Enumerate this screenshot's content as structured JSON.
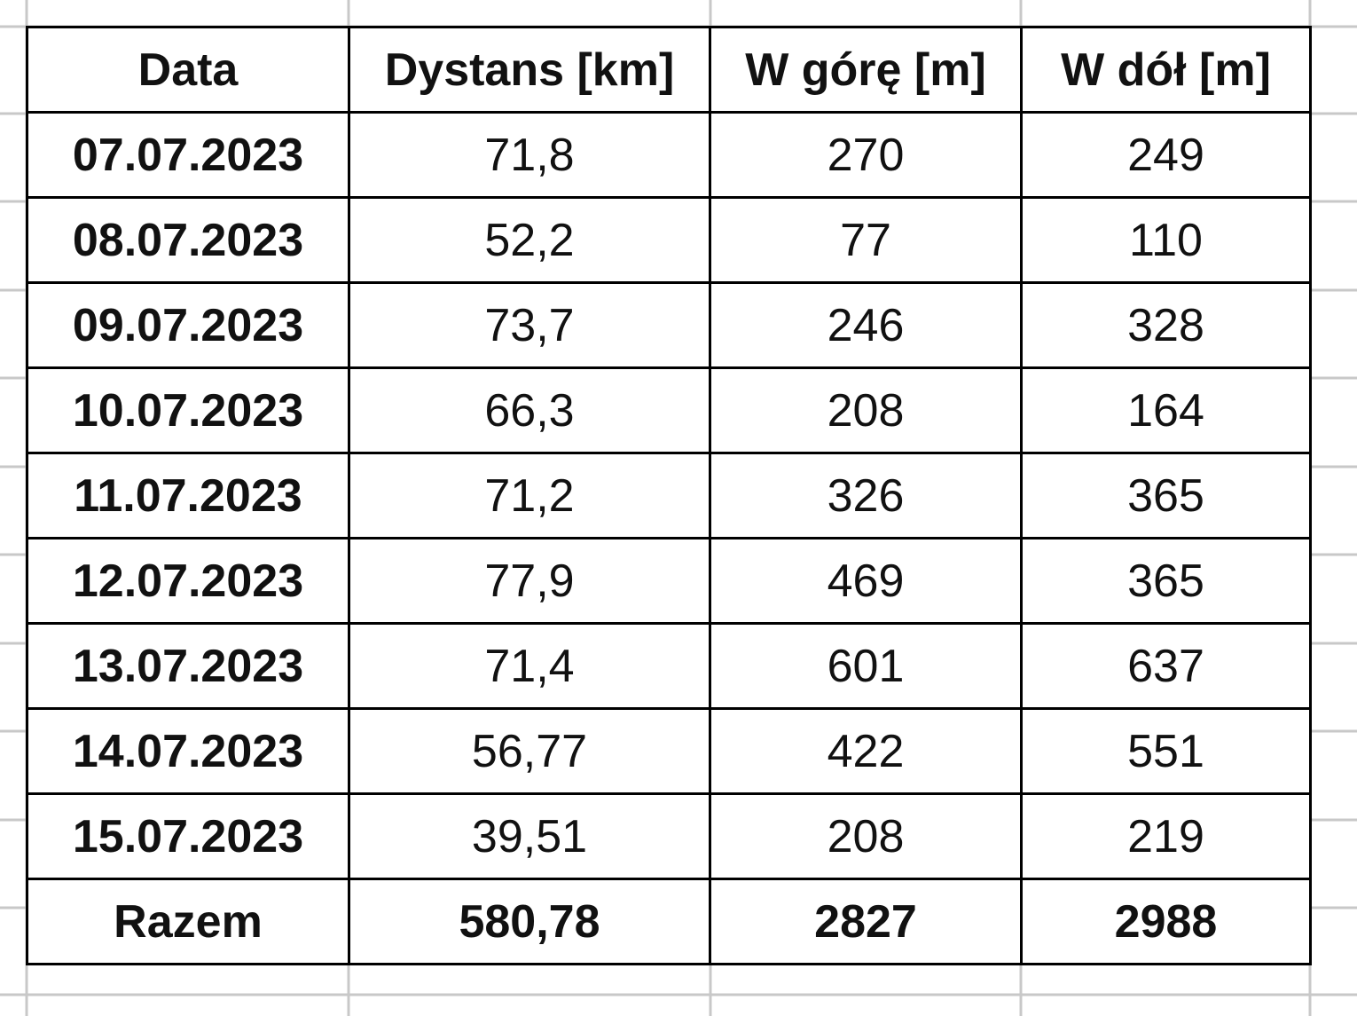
{
  "table": {
    "header": [
      "Data",
      "Dystans [km]",
      "W górę  [m]",
      "W dół  [m]"
    ],
    "rows": [
      [
        "07.07.2023",
        "71,8",
        "270",
        "249"
      ],
      [
        "08.07.2023",
        "52,2",
        "77",
        "110"
      ],
      [
        "09.07.2023",
        "73,7",
        "246",
        "328"
      ],
      [
        "10.07.2023",
        "66,3",
        "208",
        "164"
      ],
      [
        "11.07.2023",
        "71,2",
        "326",
        "365"
      ],
      [
        "12.07.2023",
        "77,9",
        "469",
        "365"
      ],
      [
        "13.07.2023",
        "71,4",
        "601",
        "637"
      ],
      [
        "14.07.2023",
        "56,77",
        "422",
        "551"
      ],
      [
        "15.07.2023",
        "39,51",
        "208",
        "219"
      ]
    ],
    "footer": [
      "Razem",
      "580,78",
      "2827",
      "2988"
    ]
  }
}
